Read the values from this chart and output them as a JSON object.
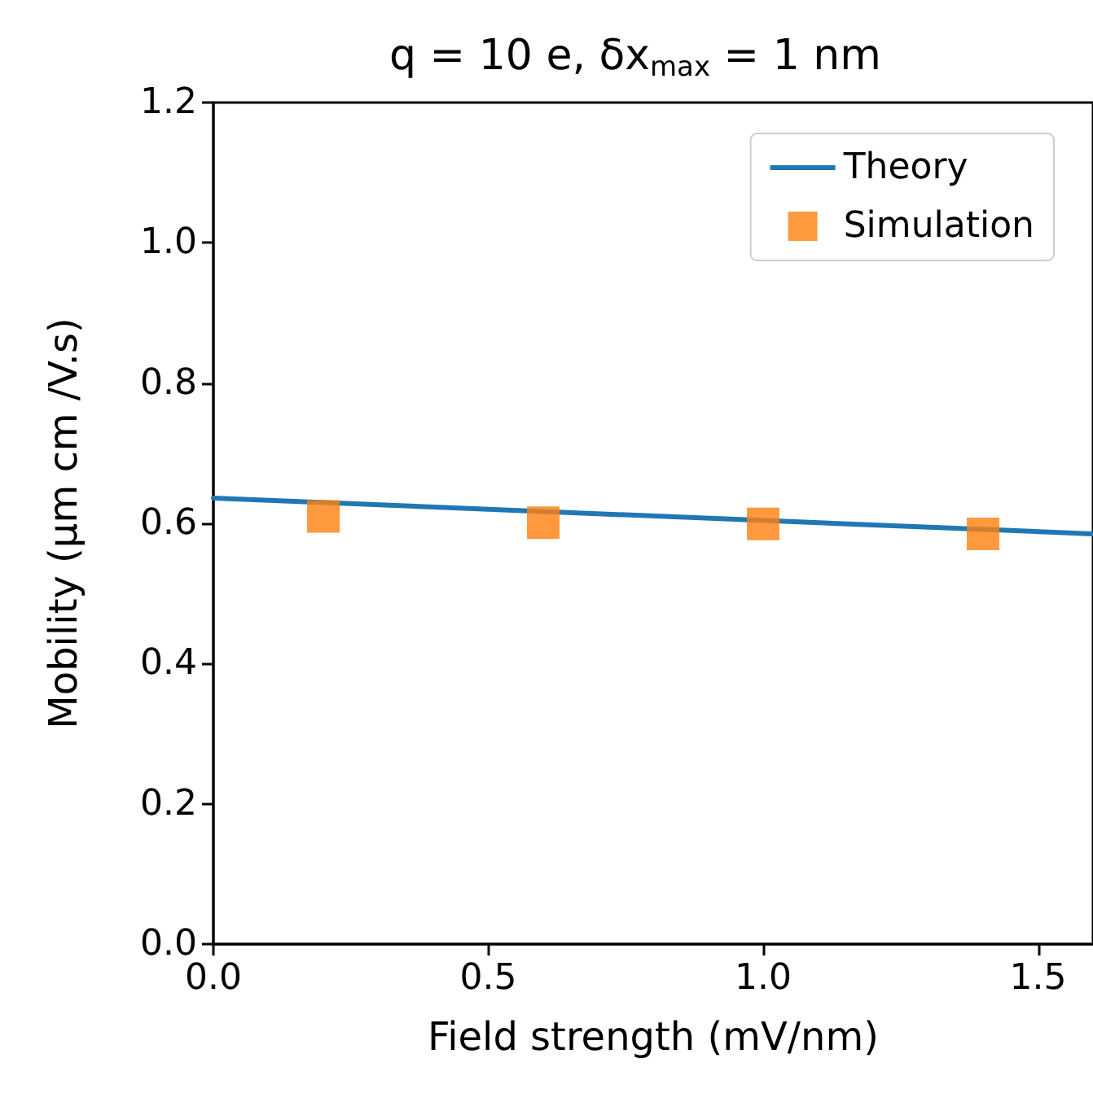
{
  "chart_data": {
    "type": "scatter",
    "title": "q = 10 e, δx$_{max}$ = 1 nm",
    "xlabel": "Field strength (mV/nm)",
    "ylabel": "Mobility (μm cm /V.s)",
    "series": [
      {
        "name": "Theory",
        "type": "line",
        "color": "#1f77b4",
        "x": [
          0,
          1.6
        ],
        "values": [
          0.636,
          0.585
        ],
        "marker": "none",
        "line_style": "solid"
      },
      {
        "name": "Simulation",
        "color": "#ff7f0e",
        "x": [
          0.2,
          0.6,
          1.0,
          1.4
        ],
        "values": [
          0.61,
          0.601,
          0.599,
          0.585
        ],
        "marker": "square"
      }
    ],
    "xlim": [
      0,
      1.6
    ],
    "xticks": [
      {
        "value": 0,
        "label": "0.0"
      },
      {
        "value": 0.5,
        "label": "0.5"
      },
      {
        "value": 1,
        "label": "1.0"
      },
      {
        "value": 1.5,
        "label": "1.5"
      }
    ],
    "ylim": [
      0,
      1.2
    ],
    "yticks": [
      {
        "value": 0,
        "label": "0.0"
      },
      {
        "value": 0.2,
        "label": "0.2"
      },
      {
        "value": 0.4,
        "label": "0.4"
      },
      {
        "value": 0.6,
        "label": "0.6"
      },
      {
        "value": 0.8,
        "label": "0.8"
      },
      {
        "value": 1,
        "label": "1.0"
      },
      {
        "value": 1.2,
        "label": "1.2"
      }
    ],
    "grid": false,
    "legend": "top right"
  }
}
